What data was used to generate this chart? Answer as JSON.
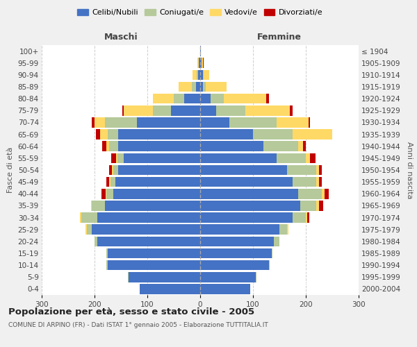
{
  "age_groups": [
    "0-4",
    "5-9",
    "10-14",
    "15-19",
    "20-24",
    "25-29",
    "30-34",
    "35-39",
    "40-44",
    "45-49",
    "50-54",
    "55-59",
    "60-64",
    "65-69",
    "70-74",
    "75-79",
    "80-84",
    "85-89",
    "90-94",
    "95-99",
    "100+"
  ],
  "birth_years": [
    "2000-2004",
    "1995-1999",
    "1990-1994",
    "1985-1989",
    "1980-1984",
    "1975-1979",
    "1970-1974",
    "1965-1969",
    "1960-1964",
    "1955-1959",
    "1950-1954",
    "1945-1949",
    "1940-1944",
    "1935-1939",
    "1930-1934",
    "1925-1929",
    "1920-1924",
    "1915-1919",
    "1910-1914",
    "1905-1909",
    "≤ 1904"
  ],
  "males": {
    "celibi": [
      115,
      135,
      175,
      175,
      195,
      205,
      195,
      180,
      165,
      160,
      155,
      145,
      155,
      155,
      120,
      55,
      30,
      8,
      4,
      2,
      0
    ],
    "coniugati": [
      0,
      2,
      2,
      2,
      5,
      10,
      30,
      25,
      12,
      10,
      10,
      12,
      18,
      20,
      60,
      35,
      20,
      8,
      3,
      1,
      0
    ],
    "vedovi": [
      0,
      0,
      0,
      0,
      0,
      2,
      2,
      2,
      2,
      2,
      2,
      2,
      5,
      15,
      20,
      55,
      40,
      25,
      8,
      2,
      0
    ],
    "divorziati": [
      0,
      0,
      0,
      0,
      0,
      0,
      0,
      0,
      8,
      5,
      5,
      10,
      8,
      8,
      5,
      2,
      0,
      0,
      0,
      0,
      0
    ]
  },
  "females": {
    "nubili": [
      95,
      105,
      130,
      135,
      140,
      150,
      175,
      190,
      185,
      175,
      165,
      145,
      120,
      100,
      55,
      30,
      20,
      5,
      5,
      2,
      1
    ],
    "coniugate": [
      0,
      2,
      2,
      2,
      10,
      15,
      25,
      30,
      45,
      45,
      55,
      55,
      65,
      75,
      90,
      55,
      25,
      5,
      2,
      1,
      0
    ],
    "vedove": [
      0,
      0,
      0,
      0,
      0,
      2,
      2,
      5,
      5,
      5,
      5,
      8,
      10,
      75,
      60,
      85,
      80,
      40,
      10,
      2,
      0
    ],
    "divorziate": [
      0,
      0,
      0,
      0,
      0,
      0,
      5,
      8,
      8,
      5,
      5,
      10,
      5,
      0,
      3,
      5,
      5,
      0,
      0,
      1,
      0
    ]
  },
  "colors": {
    "celibi_nubili": "#4472c4",
    "coniugati_e": "#b5c99a",
    "vedovi_e": "#ffd966",
    "divorziati_e": "#c00000"
  },
  "xlim": 300,
  "title": "Popolazione per età, sesso e stato civile - 2005",
  "subtitle": "COMUNE DI ARPINO (FR) - Dati ISTAT 1° gennaio 2005 - Elaborazione TUTTITALIA.IT",
  "ylabel_left": "Fasce di età",
  "ylabel_right": "Anni di nascita",
  "xlabel_left": "Maschi",
  "xlabel_right": "Femmine",
  "bg_color": "#f0f0f0",
  "plot_bg": "#ffffff"
}
